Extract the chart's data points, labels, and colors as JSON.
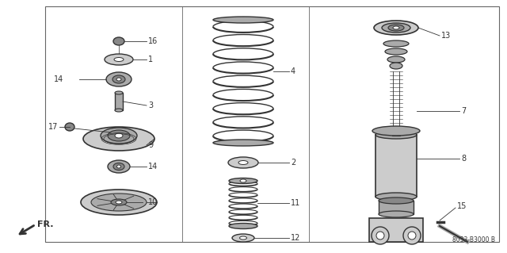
{
  "bg_color": "#ffffff",
  "border_color": "#666666",
  "line_color": "#333333",
  "dark_color": "#333333",
  "part_number": "8033-B3000 B",
  "fig_w": 6.4,
  "fig_h": 3.19,
  "dpi": 100
}
